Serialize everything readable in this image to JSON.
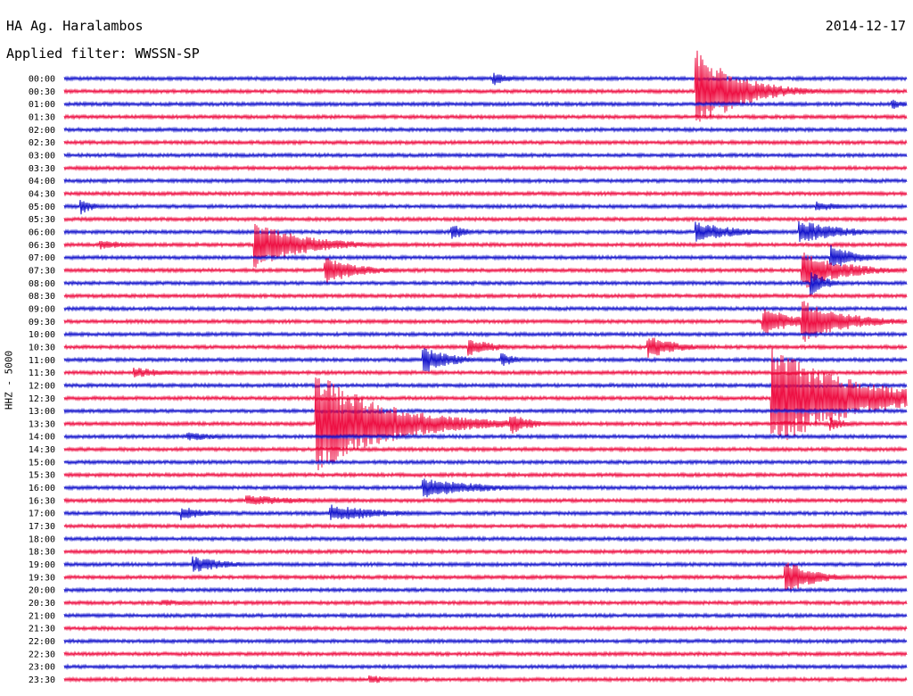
{
  "header": {
    "station": "HA Ag. Haralambos",
    "date": "2014-12-17",
    "filter_label": "Applied filter:",
    "filter_value": "WWSSN-SP",
    "channel_label": "HHZ - 5000"
  },
  "chart_data": {
    "type": "line",
    "title": "HA Ag. Haralambos",
    "date": "2014-12-17",
    "filter": "WWSSN-SP",
    "ylabel": "HHZ - 5000",
    "row_labels": [
      "00:00",
      "00:30",
      "01:00",
      "01:30",
      "02:00",
      "02:30",
      "03:00",
      "03:30",
      "04:00",
      "04:30",
      "05:00",
      "05:30",
      "06:00",
      "06:30",
      "07:00",
      "07:30",
      "08:00",
      "08:30",
      "09:00",
      "09:30",
      "10:00",
      "10:30",
      "11:00",
      "11:30",
      "12:00",
      "12:30",
      "13:00",
      "13:30",
      "14:00",
      "14:30",
      "15:00",
      "15:30",
      "16:00",
      "16:30",
      "17:00",
      "17:30",
      "18:00",
      "18:30",
      "19:00",
      "19:30",
      "20:00",
      "20:30",
      "21:00",
      "21:30",
      "22:00",
      "22:30",
      "23:00",
      "23:30"
    ],
    "row_minutes": 30,
    "series_colors": [
      "#1515cc",
      "#ee1144"
    ],
    "events": [
      {
        "row": 1,
        "minute": 22.5,
        "amplitude": 48,
        "duration": 1.5
      },
      {
        "row": 0,
        "minute": 15.3,
        "amplitude": 8,
        "duration": 0.6
      },
      {
        "row": 2,
        "minute": 29.5,
        "amplitude": 6,
        "duration": 0.5
      },
      {
        "row": 10,
        "minute": 0.6,
        "amplitude": 9,
        "duration": 0.5
      },
      {
        "row": 10,
        "minute": 26.8,
        "amplitude": 6,
        "duration": 1.0
      },
      {
        "row": 12,
        "minute": 13.8,
        "amplitude": 10,
        "duration": 0.5
      },
      {
        "row": 12,
        "minute": 22.5,
        "amplitude": 12,
        "duration": 1.5
      },
      {
        "row": 12,
        "minute": 26.2,
        "amplitude": 14,
        "duration": 1.5
      },
      {
        "row": 13,
        "minute": 1.3,
        "amplitude": 6,
        "duration": 1.2
      },
      {
        "row": 13,
        "minute": 6.8,
        "amplitude": 26,
        "duration": 1.8
      },
      {
        "row": 14,
        "minute": 27.3,
        "amplitude": 14,
        "duration": 1.0
      },
      {
        "row": 15,
        "minute": 9.3,
        "amplitude": 16,
        "duration": 1.2
      },
      {
        "row": 15,
        "minute": 26.3,
        "amplitude": 22,
        "duration": 1.5
      },
      {
        "row": 16,
        "minute": 26.6,
        "amplitude": 14,
        "duration": 0.6
      },
      {
        "row": 19,
        "minute": 24.9,
        "amplitude": 16,
        "duration": 1.2
      },
      {
        "row": 19,
        "minute": 26.3,
        "amplitude": 26,
        "duration": 1.5
      },
      {
        "row": 21,
        "minute": 14.4,
        "amplitude": 10,
        "duration": 1.0
      },
      {
        "row": 21,
        "minute": 20.8,
        "amplitude": 14,
        "duration": 1.0
      },
      {
        "row": 22,
        "minute": 12.8,
        "amplitude": 16,
        "duration": 1.0
      },
      {
        "row": 22,
        "minute": 15.6,
        "amplitude": 8,
        "duration": 0.6
      },
      {
        "row": 23,
        "minute": 2.5,
        "amplitude": 6,
        "duration": 1.5
      },
      {
        "row": 25,
        "minute": 25.2,
        "amplitude": 58,
        "duration": 2.8
      },
      {
        "row": 27,
        "minute": 9.0,
        "amplitude": 58,
        "duration": 2.5
      },
      {
        "row": 27,
        "minute": 15.9,
        "amplitude": 12,
        "duration": 0.8
      },
      {
        "row": 27,
        "minute": 27.3,
        "amplitude": 8,
        "duration": 0.6
      },
      {
        "row": 28,
        "minute": 4.4,
        "amplitude": 5,
        "duration": 1.5
      },
      {
        "row": 32,
        "minute": 12.8,
        "amplitude": 12,
        "duration": 2.0
      },
      {
        "row": 33,
        "minute": 6.5,
        "amplitude": 6,
        "duration": 2.5
      },
      {
        "row": 34,
        "minute": 4.2,
        "amplitude": 8,
        "duration": 1.0
      },
      {
        "row": 34,
        "minute": 9.5,
        "amplitude": 10,
        "duration": 2.0
      },
      {
        "row": 38,
        "minute": 4.6,
        "amplitude": 10,
        "duration": 1.2
      },
      {
        "row": 39,
        "minute": 25.7,
        "amplitude": 20,
        "duration": 1.0
      },
      {
        "row": 41,
        "minute": 3.5,
        "amplitude": 4,
        "duration": 1.5
      },
      {
        "row": 47,
        "minute": 10.9,
        "amplitude": 5,
        "duration": 1.0
      }
    ]
  }
}
